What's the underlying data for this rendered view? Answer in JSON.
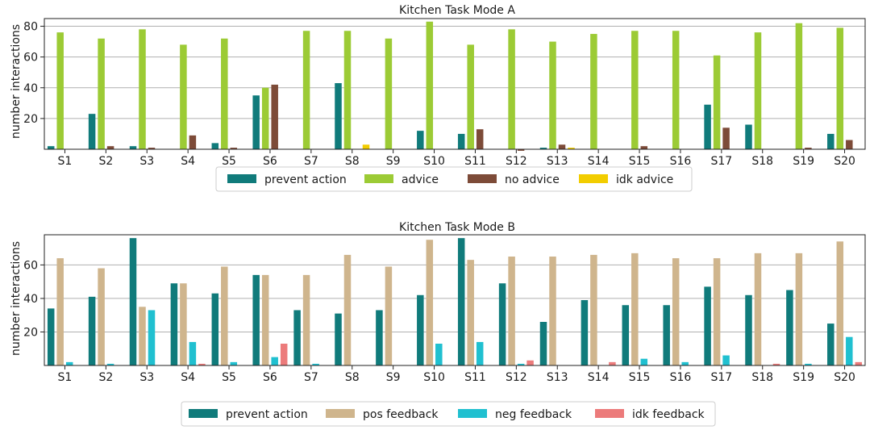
{
  "chart_data": [
    {
      "type": "bar",
      "title": "Kitchen Task Mode A",
      "xlabel": "",
      "ylabel": "number interactions",
      "ylim": [
        0,
        85
      ],
      "yticks": [
        20,
        40,
        60,
        80
      ],
      "grid": "y",
      "legend_position": "bottom-center",
      "categories": [
        "S1",
        "S2",
        "S3",
        "S4",
        "S5",
        "S6",
        "S7",
        "S8",
        "S9",
        "S10",
        "S11",
        "S12",
        "S13",
        "S14",
        "S15",
        "S16",
        "S17",
        "S18",
        "S19",
        "S20"
      ],
      "series": [
        {
          "name": "prevent action",
          "color": "#107b7b",
          "values": [
            2,
            23,
            2,
            0,
            4,
            35,
            0,
            43,
            0,
            12,
            10,
            0,
            1,
            0,
            0,
            0,
            29,
            16,
            0,
            10
          ]
        },
        {
          "name": "advice",
          "color": "#9ccb35",
          "values": [
            76,
            72,
            78,
            68,
            72,
            40,
            77,
            77,
            72,
            83,
            68,
            78,
            70,
            75,
            77,
            77,
            61,
            76,
            82,
            79
          ]
        },
        {
          "name": "no advice",
          "color": "#7d4b38",
          "values": [
            0,
            2,
            1,
            9,
            1,
            42,
            0,
            0,
            0,
            0,
            13,
            -1,
            3,
            0,
            2,
            0,
            14,
            0,
            1,
            6
          ]
        },
        {
          "name": "idk advice",
          "color": "#f2cd00",
          "values": [
            0,
            0,
            0,
            0,
            0,
            0,
            0,
            3,
            0,
            0,
            0,
            0,
            1,
            0,
            0,
            0,
            0,
            0,
            0,
            0
          ]
        }
      ]
    },
    {
      "type": "bar",
      "title": "Kitchen Task Mode B",
      "xlabel": "",
      "ylabel": "number interactions",
      "ylim": [
        0,
        78
      ],
      "yticks": [
        20,
        40,
        60
      ],
      "grid": "y",
      "legend_position": "bottom-center",
      "categories": [
        "S1",
        "S2",
        "S3",
        "S4",
        "S5",
        "S6",
        "S7",
        "S8",
        "S9",
        "S10",
        "S11",
        "S12",
        "S13",
        "S14",
        "S15",
        "S16",
        "S17",
        "S18",
        "S19",
        "S20"
      ],
      "series": [
        {
          "name": "prevent action",
          "color": "#107b7b",
          "values": [
            34,
            41,
            76,
            49,
            43,
            54,
            33,
            31,
            33,
            42,
            76,
            49,
            26,
            39,
            36,
            36,
            47,
            42,
            45,
            25
          ]
        },
        {
          "name": "pos feedback",
          "color": "#cfb58d",
          "values": [
            64,
            58,
            35,
            49,
            59,
            54,
            54,
            66,
            59,
            75,
            63,
            65,
            65,
            66,
            67,
            64,
            64,
            67,
            67,
            74
          ]
        },
        {
          "name": "neg feedback",
          "color": "#20c0d0",
          "values": [
            2,
            1,
            33,
            14,
            2,
            5,
            1,
            0,
            0,
            13,
            14,
            1,
            0,
            0,
            4,
            2,
            6,
            0,
            1,
            17
          ]
        },
        {
          "name": "idk feedback",
          "color": "#ec7b7b",
          "values": [
            0,
            0,
            0,
            1,
            0,
            13,
            0,
            0,
            0,
            0,
            0,
            3,
            0,
            2,
            0,
            0,
            0,
            1,
            0,
            2
          ]
        }
      ]
    }
  ]
}
